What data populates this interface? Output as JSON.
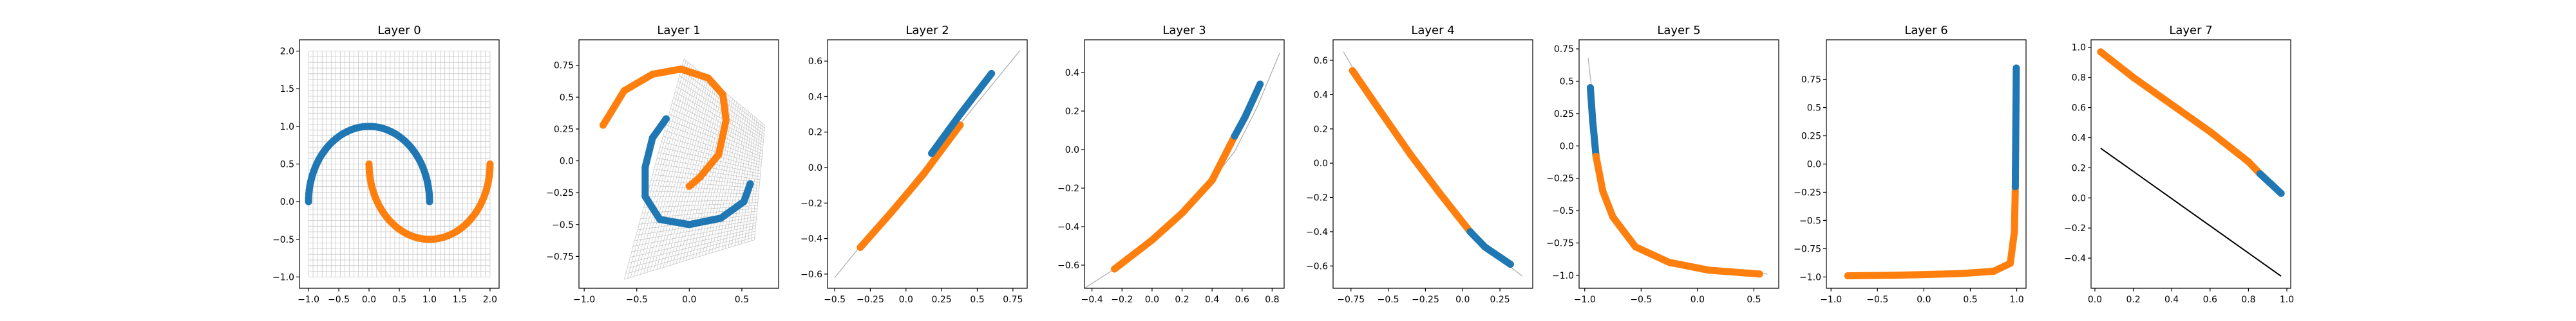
{
  "figure": {
    "colors": {
      "blue": "#1f77b4",
      "orange": "#ff7f0e",
      "grid": "#c8c8c8",
      "axis": "#000000",
      "background": "#ffffff"
    }
  },
  "chart_data": [
    {
      "type": "scatter",
      "title": "Layer 0",
      "xlabel": "",
      "ylabel": "",
      "xlim": [
        -1.15,
        2.15
      ],
      "ylim": [
        -1.15,
        2.15
      ],
      "xticks": [
        -1.0,
        -0.5,
        0.0,
        0.5,
        1.0,
        1.5,
        2.0
      ],
      "yticks": [
        -1.0,
        -0.5,
        0.0,
        0.5,
        1.0,
        1.5,
        2.0
      ],
      "grid_mesh": true,
      "grid_range": {
        "x": [
          -1.0,
          2.0
        ],
        "y": [
          -1.0,
          2.0
        ]
      },
      "series": [
        {
          "color": "blue",
          "shape": "upper-moon",
          "points": [
            [
              -1.0,
              0.0
            ],
            [
              -0.87,
              0.49
            ],
            [
              -0.5,
              0.87
            ],
            [
              0.0,
              1.0
            ],
            [
              0.5,
              0.87
            ],
            [
              0.87,
              0.49
            ],
            [
              1.0,
              0.0
            ]
          ]
        },
        {
          "color": "orange",
          "shape": "lower-moon",
          "points": [
            [
              0.0,
              0.5
            ],
            [
              0.13,
              0.01
            ],
            [
              0.5,
              -0.37
            ],
            [
              1.0,
              -0.5
            ],
            [
              1.5,
              -0.37
            ],
            [
              1.87,
              0.01
            ],
            [
              2.0,
              0.5
            ]
          ]
        }
      ]
    },
    {
      "type": "scatter",
      "title": "Layer 1",
      "xlabel": "",
      "ylabel": "",
      "xlim": [
        -1.05,
        0.85
      ],
      "ylim": [
        -1.0,
        0.95
      ],
      "xticks": [
        -1.0,
        -0.5,
        0.0,
        0.5
      ],
      "yticks": [
        -0.75,
        -0.5,
        -0.25,
        0.0,
        0.25,
        0.5,
        0.75
      ],
      "grid_mesh": true,
      "grid_corners": [
        [
          -0.62,
          -0.93
        ],
        [
          0.62,
          -0.62
        ],
        [
          0.72,
          0.28
        ],
        [
          -0.05,
          0.8
        ]
      ],
      "series": [
        {
          "color": "blue",
          "points": [
            [
              -0.22,
              0.33
            ],
            [
              -0.35,
              0.18
            ],
            [
              -0.42,
              -0.05
            ],
            [
              -0.42,
              -0.28
            ],
            [
              -0.28,
              -0.46
            ],
            [
              0.0,
              -0.5
            ],
            [
              0.3,
              -0.45
            ],
            [
              0.52,
              -0.32
            ],
            [
              0.58,
              -0.18
            ]
          ]
        },
        {
          "color": "orange",
          "points": [
            [
              -0.82,
              0.28
            ],
            [
              -0.62,
              0.55
            ],
            [
              -0.35,
              0.68
            ],
            [
              -0.08,
              0.72
            ],
            [
              0.18,
              0.65
            ],
            [
              0.32,
              0.52
            ],
            [
              0.35,
              0.32
            ],
            [
              0.28,
              0.05
            ],
            [
              0.1,
              -0.13
            ],
            [
              0.0,
              -0.2
            ]
          ]
        }
      ]
    },
    {
      "type": "scatter",
      "title": "Layer 2",
      "xlabel": "",
      "ylabel": "",
      "xlim": [
        -0.55,
        0.85
      ],
      "ylim": [
        -0.68,
        0.72
      ],
      "xticks": [
        -0.5,
        -0.25,
        0.0,
        0.25,
        0.5,
        0.75
      ],
      "yticks": [
        -0.6,
        -0.4,
        -0.2,
        0.0,
        0.2,
        0.4,
        0.6
      ],
      "reference_line": [
        [
          -0.5,
          -0.62
        ],
        [
          0.8,
          0.66
        ]
      ],
      "series": [
        {
          "color": "orange",
          "points": [
            [
              -0.32,
              -0.45
            ],
            [
              -0.1,
              -0.25
            ],
            [
              0.12,
              -0.04
            ],
            [
              0.38,
              0.24
            ]
          ]
        },
        {
          "color": "blue",
          "points": [
            [
              0.18,
              0.08
            ],
            [
              0.38,
              0.3
            ],
            [
              0.6,
              0.53
            ]
          ]
        }
      ]
    },
    {
      "type": "scatter",
      "title": "Layer 3",
      "xlabel": "",
      "ylabel": "",
      "xlim": [
        -0.45,
        0.88
      ],
      "ylim": [
        -0.72,
        0.57
      ],
      "xticks": [
        -0.4,
        -0.2,
        0.0,
        0.2,
        0.4,
        0.6,
        0.8
      ],
      "yticks": [
        -0.6,
        -0.4,
        -0.2,
        0.0,
        0.2,
        0.4
      ],
      "reference_line": [
        [
          -0.45,
          -0.72
        ],
        [
          -0.25,
          -0.62
        ],
        [
          0.0,
          -0.47
        ],
        [
          0.2,
          -0.33
        ],
        [
          0.4,
          -0.16
        ],
        [
          0.55,
          -0.01
        ],
        [
          0.7,
          0.22
        ],
        [
          0.85,
          0.5
        ]
      ],
      "series": [
        {
          "color": "orange",
          "points": [
            [
              -0.25,
              -0.62
            ],
            [
              0.0,
              -0.47
            ],
            [
              0.2,
              -0.33
            ],
            [
              0.4,
              -0.16
            ],
            [
              0.55,
              0.07
            ]
          ]
        },
        {
          "color": "blue",
          "points": [
            [
              0.55,
              0.07
            ],
            [
              0.62,
              0.17
            ],
            [
              0.72,
              0.34
            ]
          ]
        }
      ]
    },
    {
      "type": "scatter",
      "title": "Layer 4",
      "xlabel": "",
      "ylabel": "",
      "xlim": [
        -0.87,
        0.47
      ],
      "ylim": [
        -0.73,
        0.72
      ],
      "xticks": [
        -0.75,
        -0.5,
        -0.25,
        0.0,
        0.25
      ],
      "yticks": [
        -0.6,
        -0.4,
        -0.2,
        0.0,
        0.2,
        0.4,
        0.6
      ],
      "reference_line": [
        [
          -0.8,
          0.65
        ],
        [
          -0.72,
          0.53
        ],
        [
          -0.55,
          0.3
        ],
        [
          -0.35,
          0.05
        ],
        [
          -0.1,
          -0.22
        ],
        [
          0.05,
          -0.4
        ],
        [
          0.2,
          -0.52
        ],
        [
          0.4,
          -0.66
        ]
      ],
      "series": [
        {
          "color": "orange",
          "points": [
            [
              -0.74,
              0.54
            ],
            [
              -0.55,
              0.3
            ],
            [
              -0.35,
              0.05
            ],
            [
              -0.15,
              -0.18
            ],
            [
              0.05,
              -0.4
            ]
          ]
        },
        {
          "color": "blue",
          "points": [
            [
              0.05,
              -0.4
            ],
            [
              0.15,
              -0.49
            ],
            [
              0.32,
              -0.59
            ]
          ]
        }
      ]
    },
    {
      "type": "scatter",
      "title": "Layer 5",
      "xlabel": "",
      "ylabel": "",
      "xlim": [
        -1.05,
        0.72
      ],
      "ylim": [
        -1.1,
        0.82
      ],
      "xticks": [
        -1.0,
        -0.5,
        0.0,
        0.5
      ],
      "yticks": [
        -1.0,
        -0.75,
        -0.5,
        -0.25,
        0.0,
        0.25,
        0.5,
        0.75
      ],
      "reference_line": [
        [
          -0.97,
          0.68
        ],
        [
          -0.92,
          0.3
        ],
        [
          -0.86,
          -0.2
        ],
        [
          -0.75,
          -0.55
        ],
        [
          -0.55,
          -0.78
        ],
        [
          -0.25,
          -0.9
        ],
        [
          0.1,
          -0.96
        ],
        [
          0.62,
          -0.99
        ]
      ],
      "series": [
        {
          "color": "blue",
          "points": [
            [
              -0.95,
              0.45
            ],
            [
              -0.93,
              0.2
            ],
            [
              -0.9,
              -0.08
            ]
          ]
        },
        {
          "color": "orange",
          "points": [
            [
              -0.9,
              -0.08
            ],
            [
              -0.84,
              -0.35
            ],
            [
              -0.75,
              -0.55
            ],
            [
              -0.55,
              -0.78
            ],
            [
              -0.25,
              -0.9
            ],
            [
              0.1,
              -0.96
            ],
            [
              0.55,
              -0.99
            ]
          ]
        }
      ]
    },
    {
      "type": "scatter",
      "title": "Layer 6",
      "xlabel": "",
      "ylabel": "",
      "xlim": [
        -1.05,
        1.1
      ],
      "ylim": [
        -1.1,
        1.1
      ],
      "xticks": [
        -1.0,
        -0.5,
        0.0,
        0.5,
        1.0
      ],
      "yticks": [
        -1.0,
        -0.75,
        -0.5,
        -0.25,
        0.0,
        0.25,
        0.5,
        0.75
      ],
      "series": [
        {
          "color": "orange",
          "points": [
            [
              -0.82,
              -0.99
            ],
            [
              -0.3,
              -0.985
            ],
            [
              0.4,
              -0.97
            ],
            [
              0.75,
              -0.95
            ],
            [
              0.93,
              -0.88
            ],
            [
              0.975,
              -0.6
            ],
            [
              0.985,
              -0.2
            ]
          ]
        },
        {
          "color": "blue",
          "points": [
            [
              0.985,
              -0.2
            ],
            [
              0.99,
              0.3
            ],
            [
              0.995,
              0.85
            ]
          ]
        }
      ]
    },
    {
      "type": "scatter",
      "title": "Layer 7",
      "xlabel": "",
      "ylabel": "",
      "xlim": [
        -0.02,
        1.02
      ],
      "ylim": [
        -0.6,
        1.05
      ],
      "xticks": [
        0.0,
        0.2,
        0.4,
        0.6,
        0.8,
        1.0
      ],
      "yticks": [
        -0.4,
        -0.2,
        0.0,
        0.2,
        0.4,
        0.6,
        0.8,
        1.0
      ],
      "decision_line": [
        [
          0.03,
          0.33
        ],
        [
          0.97,
          -0.52
        ]
      ],
      "series": [
        {
          "color": "orange",
          "points": [
            [
              0.03,
              0.97
            ],
            [
              0.2,
              0.8
            ],
            [
              0.4,
              0.62
            ],
            [
              0.6,
              0.44
            ],
            [
              0.8,
              0.24
            ],
            [
              0.86,
              0.16
            ]
          ]
        },
        {
          "color": "blue",
          "points": [
            [
              0.86,
              0.16
            ],
            [
              0.92,
              0.09
            ],
            [
              0.97,
              0.03
            ]
          ]
        }
      ]
    }
  ]
}
